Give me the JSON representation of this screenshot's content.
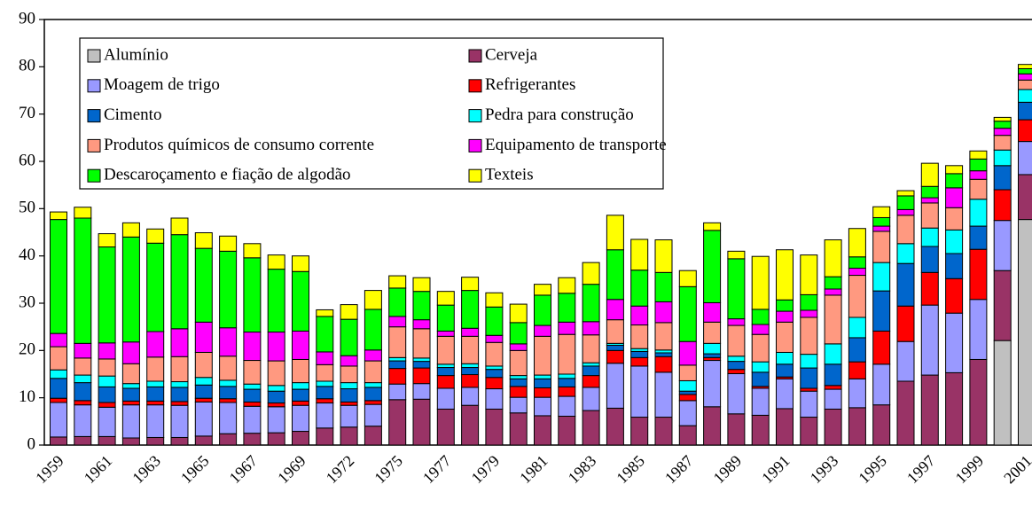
{
  "chart_data": {
    "type": "stacked-bar",
    "categories": [
      "1959",
      null,
      "1961",
      null,
      "1963",
      null,
      "1965",
      null,
      "1967",
      null,
      "1969",
      null,
      "1972",
      null,
      "1975",
      null,
      "1977",
      null,
      "1979",
      null,
      "1981",
      null,
      "1983",
      null,
      "1985",
      null,
      "1987",
      null,
      "1989",
      null,
      "1991",
      null,
      "1993",
      null,
      "1995",
      null,
      "1997",
      null,
      "1999",
      null,
      "2001"
    ],
    "ylim": [
      0,
      90
    ],
    "yticks": [
      0,
      10,
      20,
      30,
      40,
      50,
      60,
      70,
      80,
      90
    ],
    "series": [
      {
        "name": "Alumínio",
        "color": "#c0c0c0",
        "values": [
          0,
          0,
          0,
          0,
          0,
          0,
          0,
          0,
          0,
          0,
          0,
          0,
          0,
          0,
          0,
          0,
          0,
          0,
          0,
          0,
          0,
          0,
          0,
          0,
          0,
          0,
          0,
          0,
          0,
          0,
          0,
          0,
          0,
          0,
          0,
          0,
          0,
          0,
          0,
          22.1,
          47.7
        ]
      },
      {
        "name": "Cerveja",
        "color": "#993366",
        "values": [
          1.7,
          1.8,
          1.8,
          1.5,
          1.6,
          1.6,
          1.9,
          2.4,
          2.5,
          2.6,
          2.9,
          3.6,
          3.8,
          4.0,
          9.6,
          9.7,
          7.6,
          8.4,
          7.6,
          6.8,
          6.2,
          6.1,
          7.3,
          7.8,
          5.9,
          5.9,
          4.1,
          8.1,
          6.6,
          6.3,
          7.7,
          5.9,
          7.6,
          7.9,
          8.5,
          13.5,
          14.8,
          15.3,
          18.1,
          14.8,
          9.5
        ]
      },
      {
        "name": "Moagem de trigo",
        "color": "#9999ff",
        "values": [
          7.3,
          6.7,
          6.2,
          7.0,
          6.9,
          6.8,
          7.2,
          6.6,
          5.7,
          5.5,
          5.5,
          5.3,
          4.6,
          4.6,
          3.3,
          3.3,
          4.4,
          3.8,
          4.3,
          3.3,
          3.9,
          4.2,
          4.9,
          9.5,
          10.8,
          9.5,
          5.3,
          9.8,
          8.5,
          5.7,
          6.3,
          5.5,
          4.2,
          6.1,
          8.6,
          8.4,
          14.8,
          12.6,
          12.7,
          10.6,
          7.0
        ]
      },
      {
        "name": "Refrigerantes",
        "color": "#ff0000",
        "values": [
          0.9,
          0.9,
          1.0,
          0.8,
          0.8,
          0.8,
          0.8,
          0.8,
          0.9,
          0.8,
          0.9,
          0.9,
          0.7,
          0.8,
          3.3,
          3.3,
          2.7,
          2.7,
          2.4,
          2.3,
          2.0,
          2.0,
          2.5,
          2.7,
          1.8,
          3.3,
          1.3,
          0.6,
          0.9,
          0.4,
          0.4,
          0.6,
          0.8,
          3.6,
          7.0,
          7.5,
          6.9,
          7.3,
          10.6,
          6.5,
          4.6
        ]
      },
      {
        "name": "Cimento",
        "color": "#0066cc",
        "values": [
          4.2,
          3.8,
          3.3,
          2.7,
          3.0,
          3.0,
          2.8,
          2.6,
          2.7,
          2.5,
          2.5,
          2.6,
          2.8,
          2.8,
          1.6,
          1.4,
          1.7,
          1.5,
          1.7,
          1.6,
          1.9,
          1.8,
          2.0,
          1.1,
          1.3,
          0.8,
          0.7,
          0.8,
          1.7,
          3.0,
          2.7,
          4.3,
          4.5,
          5.1,
          8.5,
          9.0,
          5.5,
          5.3,
          4.9,
          5.1,
          3.7
        ]
      },
      {
        "name": "Pedra para construção",
        "color": "#00ffff",
        "values": [
          1.8,
          1.6,
          2.3,
          1.0,
          1.2,
          1.2,
          1.6,
          1.3,
          1.1,
          1.2,
          1.4,
          1.1,
          1.3,
          1.0,
          0.7,
          0.7,
          0.7,
          0.8,
          0.7,
          0.7,
          0.8,
          0.9,
          0.7,
          0.4,
          0.6,
          0.6,
          2.2,
          2.2,
          1.1,
          2.2,
          2.5,
          2.9,
          4.3,
          4.3,
          6.0,
          4.2,
          3.9,
          5.0,
          5.7,
          3.3,
          2.7
        ]
      },
      {
        "name": "Produtos químicos de consumo corrente",
        "color": "#ff9980",
        "values": [
          4.9,
          3.6,
          3.6,
          4.2,
          5.1,
          5.3,
          5.3,
          5.1,
          5.0,
          5.2,
          4.9,
          3.5,
          3.5,
          4.6,
          6.5,
          6.2,
          5.9,
          5.8,
          5.0,
          5.3,
          8.2,
          8.4,
          5.9,
          5.0,
          5.0,
          5.8,
          3.3,
          4.5,
          6.5,
          5.8,
          6.4,
          7.8,
          10.3,
          8.9,
          6.6,
          6.0,
          5.3,
          4.7,
          4.2,
          3.1,
          2.0
        ]
      },
      {
        "name": "Equipamento de transporte",
        "color": "#ff00ff",
        "values": [
          2.8,
          3.1,
          3.4,
          4.6,
          5.4,
          5.9,
          6.4,
          6.0,
          6.0,
          6.1,
          6.0,
          2.7,
          2.2,
          2.3,
          2.2,
          1.9,
          1.1,
          1.7,
          1.5,
          1.4,
          2.3,
          2.6,
          2.8,
          4.3,
          4.0,
          4.4,
          5.0,
          4.1,
          1.4,
          2.1,
          2.3,
          1.5,
          1.3,
          1.5,
          1.1,
          1.2,
          1.1,
          4.2,
          1.8,
          1.5,
          1.3
        ]
      },
      {
        "name": "Descaroçamento e fiação de algodão",
        "color": "#00ff00",
        "values": [
          24.1,
          26.5,
          20.3,
          22.2,
          18.7,
          19.9,
          15.6,
          16.2,
          15.7,
          13.3,
          12.6,
          7.5,
          7.7,
          8.6,
          6.0,
          6.0,
          5.5,
          8.0,
          6.0,
          4.5,
          6.4,
          6.1,
          7.9,
          10.5,
          7.6,
          6.2,
          11.6,
          15.3,
          12.7,
          3.2,
          2.4,
          3.3,
          2.6,
          2.4,
          1.8,
          2.9,
          2.4,
          3.0,
          2.5,
          1.5,
          1.1
        ]
      },
      {
        "name": "Texteis",
        "color": "#ffff00",
        "values": [
          1.6,
          2.3,
          2.8,
          3.0,
          3.0,
          3.5,
          3.3,
          3.2,
          3.0,
          3.0,
          3.3,
          1.4,
          3.1,
          4.0,
          2.6,
          2.9,
          2.9,
          2.8,
          3.0,
          3.9,
          2.3,
          3.3,
          4.6,
          7.3,
          6.5,
          6.9,
          3.4,
          1.6,
          1.6,
          11.2,
          10.6,
          8.4,
          7.8,
          6.0,
          2.3,
          1.1,
          4.9,
          1.7,
          1.7,
          0.8,
          0.9
        ]
      }
    ]
  }
}
